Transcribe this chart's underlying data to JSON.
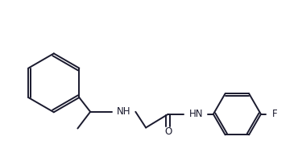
{
  "bg_color": "#ffffff",
  "line_color": "#1a1a2e",
  "text_color": "#1a1a2e",
  "label_F": "F",
  "label_NH1": "NH",
  "label_NH2": "HN",
  "label_O": "O",
  "figsize": [
    3.7,
    1.85
  ],
  "dpi": 100
}
